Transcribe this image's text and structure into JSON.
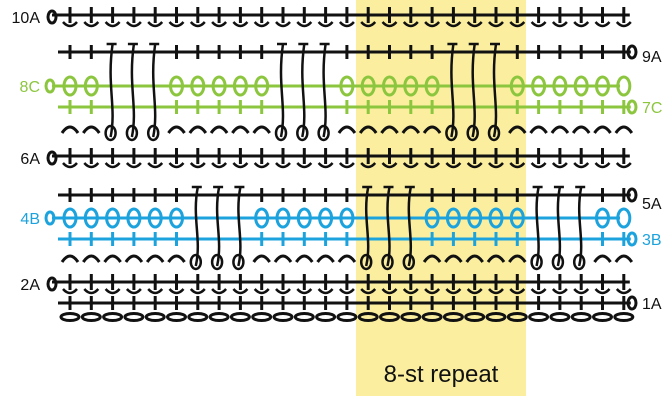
{
  "colors": {
    "black": "#111111",
    "green": "#8cc63f",
    "blue": "#1ca3dd",
    "highlight": "#fbef9f"
  },
  "row_labels": [
    {
      "id": "1A",
      "text": "1A",
      "color": "black"
    },
    {
      "id": "2A",
      "text": "2A",
      "color": "black"
    },
    {
      "id": "3B",
      "text": "3B",
      "color": "blue"
    },
    {
      "id": "4B",
      "text": "4B",
      "color": "blue"
    },
    {
      "id": "5A",
      "text": "5A",
      "color": "black"
    },
    {
      "id": "6A",
      "text": "6A",
      "color": "black"
    },
    {
      "id": "7C",
      "text": "7C",
      "color": "green"
    },
    {
      "id": "8C",
      "text": "8C",
      "color": "green"
    },
    {
      "id": "9A",
      "text": "9A",
      "color": "black"
    },
    {
      "id": "10A",
      "text": "10A",
      "color": "black"
    }
  ],
  "repeat_label": "8-st repeat",
  "symbols": {
    "chain": "chain-stitch",
    "single_crochet": "single-crochet",
    "chain_space": "chain-space-arch",
    "treble": "treble-crochet"
  }
}
